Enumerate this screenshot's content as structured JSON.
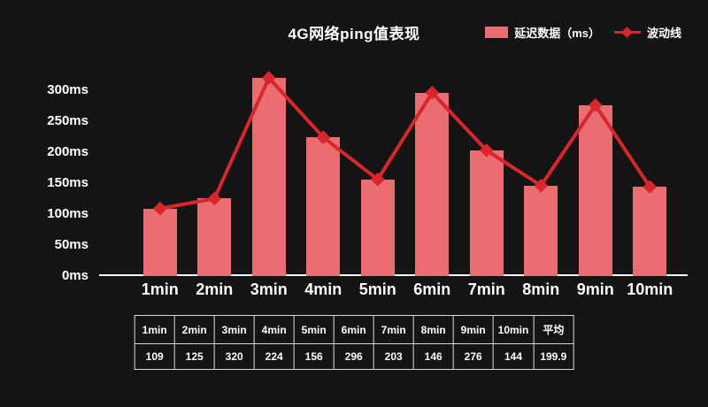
{
  "title": "4G网络ping值表现",
  "legend": {
    "bar_label": "延迟数据（ms）",
    "line_label": "波动线"
  },
  "colors": {
    "background": "#141414",
    "bar": "#e96d71",
    "line": "#d8262c",
    "text": "#ffffff"
  },
  "chart_data": {
    "type": "bar",
    "title": "4G网络ping值表现",
    "categories": [
      "1min",
      "2min",
      "3min",
      "4min",
      "5min",
      "6min",
      "7min",
      "8min",
      "9min",
      "10min"
    ],
    "series": [
      {
        "name": "延迟数据（ms）",
        "type": "bar",
        "values": [
          109,
          125,
          320,
          224,
          156,
          296,
          203,
          146,
          276,
          144
        ]
      },
      {
        "name": "波动线",
        "type": "line",
        "values": [
          109,
          125,
          320,
          224,
          156,
          296,
          203,
          146,
          276,
          144
        ]
      }
    ],
    "y_ticks": [
      "0ms",
      "50ms",
      "100ms",
      "150ms",
      "200ms",
      "250ms",
      "300ms"
    ],
    "y_tick_values": [
      0,
      50,
      100,
      150,
      200,
      250,
      300
    ],
    "ylim": [
      0,
      350
    ],
    "xlabel": "",
    "ylabel": "",
    "grid": false,
    "legend_position": "top-right",
    "average_label": "平均",
    "average_value": "199.9"
  },
  "table": {
    "headers": [
      "1min",
      "2min",
      "3min",
      "4min",
      "5min",
      "6min",
      "7min",
      "8min",
      "9min",
      "10min",
      "平均"
    ],
    "values": [
      "109",
      "125",
      "320",
      "224",
      "156",
      "296",
      "203",
      "146",
      "276",
      "144",
      "199.9"
    ]
  }
}
